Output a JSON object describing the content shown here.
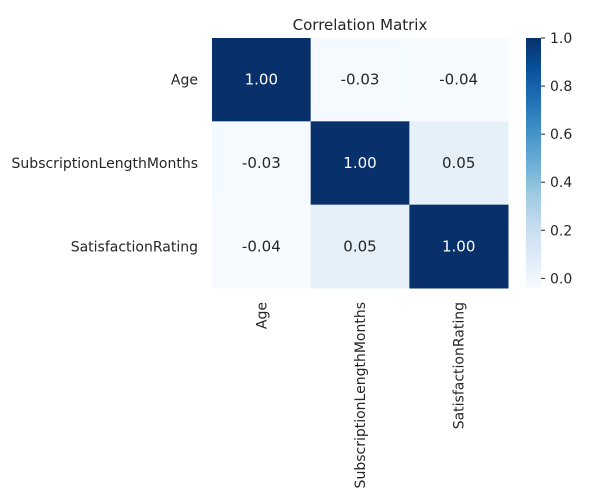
{
  "chart_data": {
    "type": "heatmap",
    "title": "Correlation Matrix",
    "xlabel": "",
    "ylabel": "",
    "x_categories": [
      "Age",
      "SubscriptionLengthMonths",
      "SatisfactionRating"
    ],
    "y_categories": [
      "Age",
      "SubscriptionLengthMonths",
      "SatisfactionRating"
    ],
    "values": [
      [
        1.0,
        -0.03,
        -0.04
      ],
      [
        -0.03,
        1.0,
        0.05
      ],
      [
        -0.04,
        0.05,
        1.0
      ]
    ],
    "annotations": [
      [
        "1.00",
        "-0.03",
        "-0.04"
      ],
      [
        "-0.03",
        "1.00",
        "0.05"
      ],
      [
        "-0.04",
        "0.05",
        "1.00"
      ]
    ],
    "colormap": "Blues",
    "colorbar": {
      "range": [
        -0.04,
        1.0
      ],
      "ticks": [
        0.0,
        0.2,
        0.4,
        0.6,
        0.8,
        1.0
      ],
      "tick_labels": [
        "0.0",
        "0.2",
        "0.4",
        "0.6",
        "0.8",
        "1.0"
      ]
    }
  },
  "colors": {
    "low": "#f7fbff",
    "high": "#08306b",
    "text_dark": "#262626",
    "text_light": "#ffffff"
  }
}
